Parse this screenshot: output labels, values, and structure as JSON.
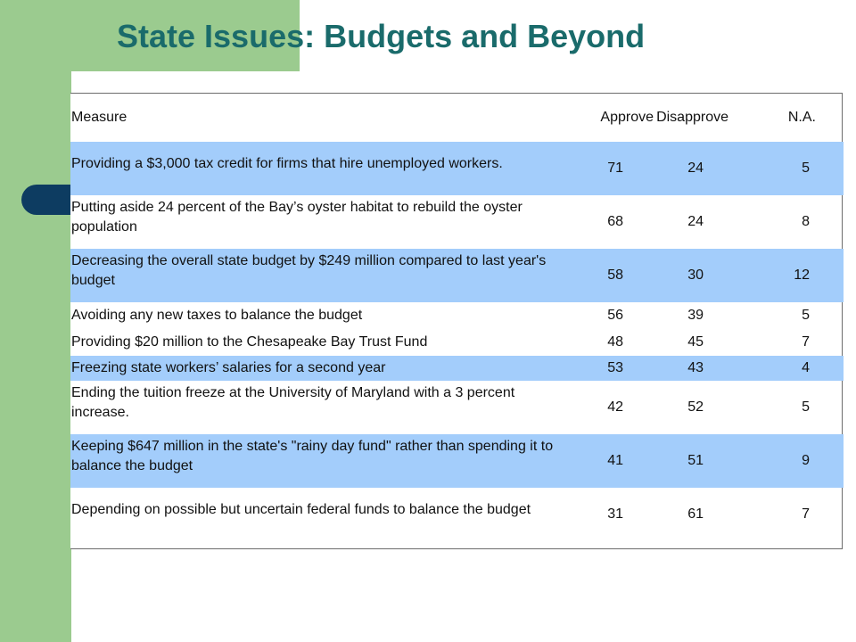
{
  "slide": {
    "title": "State Issues: Budgets and Beyond"
  },
  "table": {
    "headers": {
      "measure": "Measure",
      "approve": "Approve",
      "disapprove": "Disapprove",
      "na": "N.A."
    },
    "rows": [
      {
        "measure": "Providing a $3,000 tax credit for firms that hire unemployed workers.",
        "approve": "71",
        "disapprove": "24",
        "na": "5"
      },
      {
        "measure": "Putting aside 24 percent of the Bay’s oyster habitat to rebuild the oyster population",
        "approve": "68",
        "disapprove": "24",
        "na": "8"
      },
      {
        "measure": "Decreasing the overall state budget by $249 million compared to last year's budget",
        "approve": "58",
        "disapprove": "30",
        "na": "12"
      },
      {
        "measure": "Avoiding any new taxes to balance the budget",
        "approve": "56",
        "disapprove": "39",
        "na": "5"
      },
      {
        "measure": "Providing $20 million to the Chesapeake Bay Trust Fund",
        "approve": "48",
        "disapprove": "45",
        "na": "7"
      },
      {
        "measure": "Freezing state workers’ salaries for a second year",
        "approve": "53",
        "disapprove": "43",
        "na": "4"
      },
      {
        "measure": "Ending the tuition freeze at the University of Maryland with a 3 percent increase.",
        "approve": "42",
        "disapprove": "52",
        "na": "5"
      },
      {
        "measure": "Keeping $647 million in the state's \"rainy day fund\" rather than spending it to balance the budget",
        "approve": "41",
        "disapprove": "51",
        "na": "9"
      },
      {
        "measure": "Depending on possible but uncertain federal funds to balance the budget",
        "approve": "31",
        "disapprove": "61",
        "na": "7"
      }
    ]
  },
  "colors": {
    "title": "#1a6b6b",
    "panel_green": "#9bcb8f",
    "band_blue": "#a3cdfb",
    "tab_marker": "#0d3c61"
  }
}
